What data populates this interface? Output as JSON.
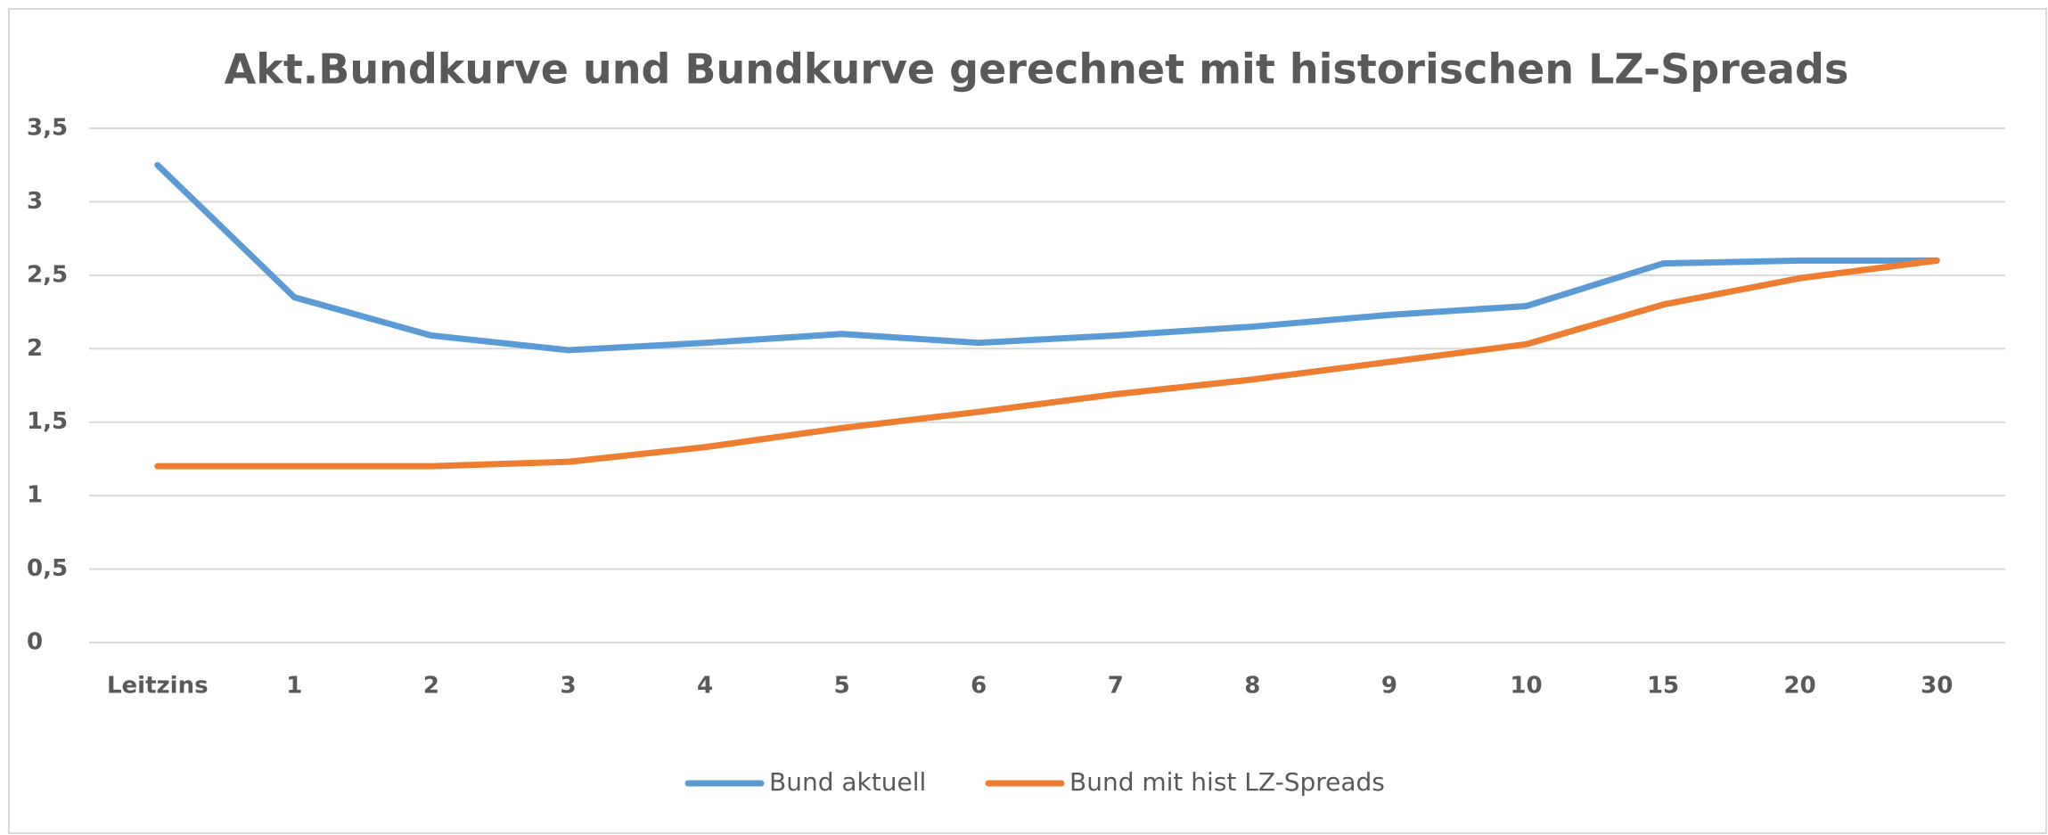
{
  "chart_data": {
    "type": "line",
    "title": "Akt.Bundkurve und Bundkurve gerechnet mit historischen LZ-Spreads",
    "categories": [
      "Leitzins",
      "1",
      "2",
      "3",
      "4",
      "5",
      "6",
      "7",
      "8",
      "9",
      "10",
      "15",
      "20",
      "30"
    ],
    "series": [
      {
        "name": "Bund aktuell",
        "color": "#5b9bd5",
        "values": [
          3.25,
          2.35,
          2.09,
          1.99,
          2.04,
          2.1,
          2.04,
          2.09,
          2.15,
          2.23,
          2.29,
          2.58,
          2.6,
          2.6
        ]
      },
      {
        "name": "Bund mit hist LZ-Spreads",
        "color": "#ed7d31",
        "values": [
          1.2,
          1.2,
          1.2,
          1.23,
          1.33,
          1.46,
          1.57,
          1.69,
          1.79,
          1.91,
          2.03,
          2.3,
          2.48,
          2.6
        ]
      }
    ],
    "ylim": [
      0,
      3.5
    ],
    "yticks": [
      0,
      {
        "value": 0.5,
        "label": "0,5"
      },
      1,
      {
        "value": 1.5,
        "label": "1,5"
      },
      2,
      {
        "value": 2.5,
        "label": "2,5"
      },
      3,
      {
        "value": 3.5,
        "label": "3,5"
      }
    ],
    "grid": true,
    "legend": "bottom"
  }
}
